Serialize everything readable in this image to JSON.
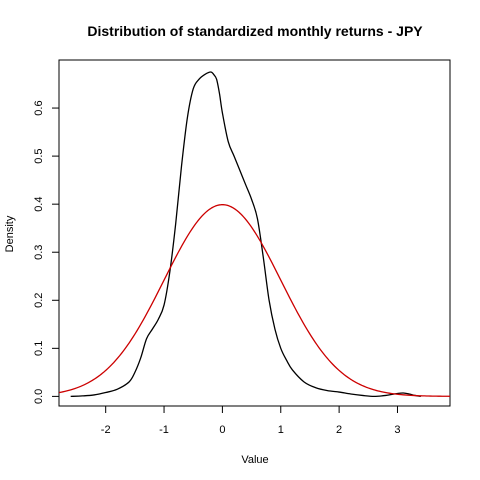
{
  "chart_data": {
    "type": "line",
    "title": "Distribution of standardized monthly returns - JPY",
    "xlabel": "Value",
    "ylabel": "Density",
    "xlim": [
      -2.8,
      3.9
    ],
    "ylim": [
      -0.02,
      0.7
    ],
    "xticks": [
      -2,
      -1,
      0,
      1,
      2,
      3
    ],
    "yticks": [
      0.0,
      0.1,
      0.2,
      0.3,
      0.4,
      0.5,
      0.6
    ],
    "grid": false,
    "legend": "none",
    "series": [
      {
        "color": "#000000",
        "x": [
          -2.6,
          -2.4,
          -2.2,
          -2.0,
          -1.8,
          -1.6,
          -1.5,
          -1.4,
          -1.3,
          -1.2,
          -1.1,
          -1.0,
          -0.9,
          -0.8,
          -0.7,
          -0.6,
          -0.5,
          -0.4,
          -0.3,
          -0.2,
          -0.15,
          -0.1,
          -0.05,
          0.0,
          0.1,
          0.2,
          0.3,
          0.4,
          0.5,
          0.6,
          0.7,
          0.8,
          0.9,
          1.0,
          1.1,
          1.2,
          1.4,
          1.6,
          1.8,
          2.0,
          2.2,
          2.4,
          2.6,
          2.8,
          3.0,
          3.1,
          3.2,
          3.3,
          3.4
        ],
        "y": [
          0.0,
          0.001,
          0.003,
          0.008,
          0.015,
          0.03,
          0.05,
          0.08,
          0.12,
          0.14,
          0.16,
          0.19,
          0.26,
          0.36,
          0.48,
          0.58,
          0.64,
          0.66,
          0.67,
          0.675,
          0.67,
          0.66,
          0.63,
          0.59,
          0.53,
          0.5,
          0.47,
          0.44,
          0.41,
          0.37,
          0.29,
          0.2,
          0.14,
          0.1,
          0.075,
          0.055,
          0.03,
          0.018,
          0.012,
          0.009,
          0.005,
          0.002,
          0.0,
          0.002,
          0.006,
          0.007,
          0.005,
          0.002,
          0.0
        ]
      },
      {
        "color": "#cc0000",
        "function": "standard normal density",
        "x_from": -2.8,
        "x_to": 3.9
      }
    ]
  }
}
